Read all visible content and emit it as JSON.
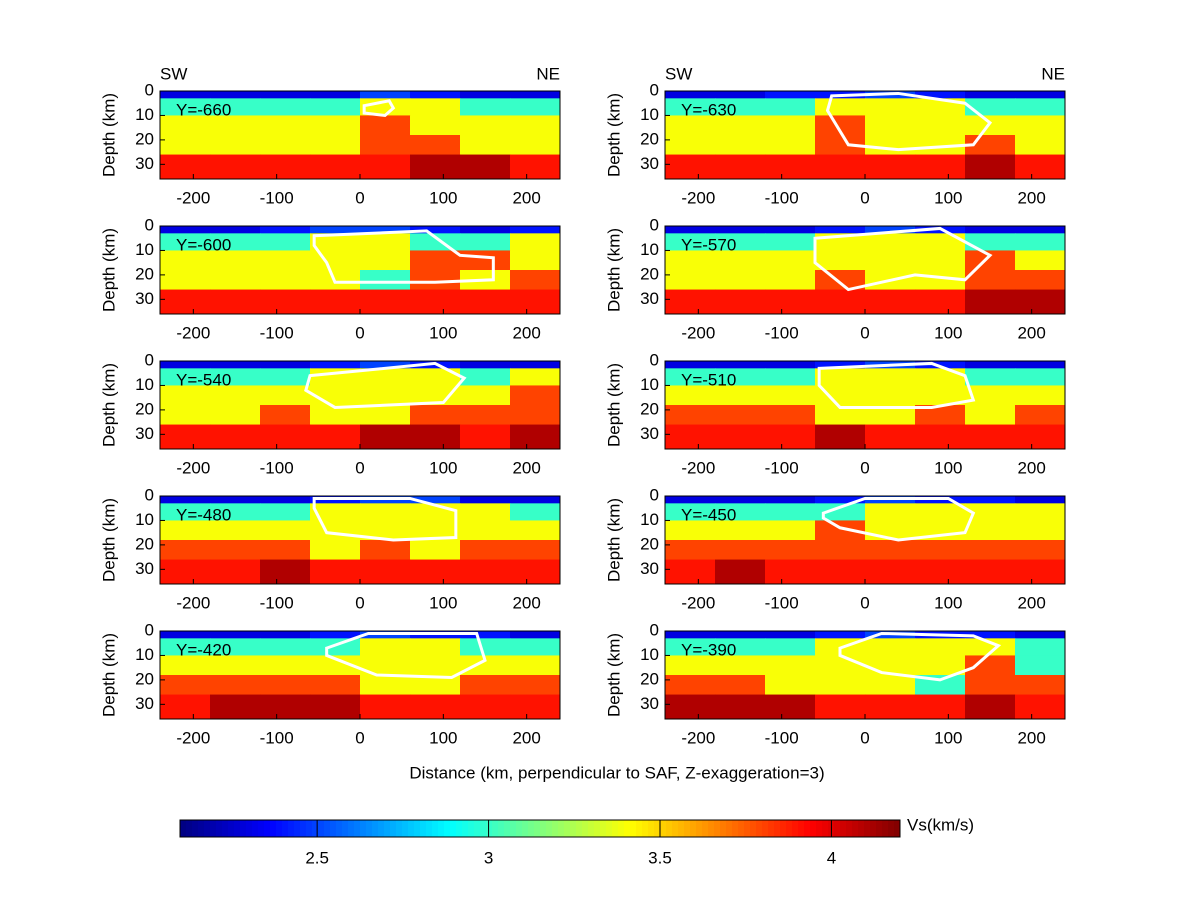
{
  "chart_data": [
    {
      "type": "contour",
      "title": "Y=-660",
      "left_label": "SW",
      "right_label": "NE",
      "ylabel": "Depth (km)",
      "x": [
        -240,
        -180,
        -120,
        -60,
        0,
        60,
        120,
        180,
        240
      ],
      "depth": [
        0,
        3,
        10,
        18,
        26,
        36
      ],
      "z": [
        [
          2.3,
          2.3,
          2.3,
          2.3,
          2.5,
          2.4,
          2.3,
          2.3
        ],
        [
          3.0,
          3.0,
          3.0,
          3.0,
          3.4,
          3.4,
          3.0,
          3.0
        ],
        [
          3.4,
          3.4,
          3.4,
          3.4,
          3.8,
          3.4,
          3.4,
          3.4
        ],
        [
          3.4,
          3.4,
          3.4,
          3.4,
          3.8,
          3.8,
          3.4,
          3.4
        ],
        [
          3.9,
          3.9,
          3.9,
          3.9,
          3.9,
          4.1,
          4.1,
          3.9
        ]
      ],
      "outline": {
        "x": [
          5,
          35,
          40,
          30,
          5
        ],
        "depth": [
          6,
          4,
          7,
          10,
          9
        ]
      },
      "xlim": [
        -240,
        240
      ],
      "ylim": [
        0,
        36
      ],
      "xticks": [
        -200,
        -100,
        0,
        100,
        200
      ],
      "yticks": [
        0,
        10,
        20,
        30
      ]
    },
    {
      "type": "contour",
      "title": "Y=-630",
      "left_label": "SW",
      "right_label": "NE",
      "ylabel": "Depth (km)",
      "x": [
        -240,
        -180,
        -120,
        -60,
        0,
        60,
        120,
        180,
        240
      ],
      "depth": [
        0,
        3,
        10,
        18,
        26,
        36
      ],
      "z": [
        [
          2.3,
          2.3,
          2.4,
          2.4,
          2.5,
          2.4,
          2.3,
          2.3
        ],
        [
          3.0,
          3.0,
          3.0,
          3.4,
          3.4,
          3.4,
          3.0,
          3.0
        ],
        [
          3.4,
          3.4,
          3.4,
          3.8,
          3.4,
          3.4,
          3.4,
          3.4
        ],
        [
          3.4,
          3.4,
          3.4,
          3.8,
          3.4,
          3.4,
          3.8,
          3.4
        ],
        [
          3.9,
          3.9,
          3.9,
          3.9,
          3.9,
          3.9,
          4.1,
          3.9
        ]
      ],
      "outline": {
        "x": [
          -40,
          40,
          120,
          150,
          130,
          40,
          -20,
          -45
        ],
        "depth": [
          2,
          1,
          5,
          13,
          22,
          24,
          22,
          8
        ]
      },
      "xlim": [
        -240,
        240
      ],
      "ylim": [
        0,
        36
      ],
      "xticks": [
        -200,
        -100,
        0,
        100,
        200
      ],
      "yticks": [
        0,
        10,
        20,
        30
      ]
    },
    {
      "type": "contour",
      "title": "Y=-600",
      "ylabel": "Depth (km)",
      "x": [
        -240,
        -180,
        -120,
        -60,
        0,
        60,
        120,
        180,
        240
      ],
      "depth": [
        0,
        3,
        10,
        18,
        26,
        36
      ],
      "z": [
        [
          2.3,
          2.3,
          2.4,
          2.5,
          2.5,
          2.4,
          2.3,
          2.4
        ],
        [
          3.0,
          3.0,
          3.0,
          3.4,
          3.4,
          3.0,
          3.0,
          3.4
        ],
        [
          3.4,
          3.4,
          3.4,
          3.4,
          3.4,
          3.8,
          3.8,
          3.4
        ],
        [
          3.4,
          3.4,
          3.4,
          3.4,
          3.0,
          3.8,
          3.4,
          3.8
        ],
        [
          3.9,
          3.9,
          3.9,
          3.9,
          3.9,
          3.9,
          3.9,
          3.9
        ]
      ],
      "outline": {
        "x": [
          -55,
          80,
          120,
          160,
          160,
          90,
          -30,
          -40,
          -55
        ],
        "depth": [
          4,
          2,
          12,
          13,
          22,
          23,
          23,
          15,
          8
        ]
      },
      "xlim": [
        -240,
        240
      ],
      "ylim": [
        0,
        36
      ],
      "xticks": [
        -200,
        -100,
        0,
        100,
        200
      ],
      "yticks": [
        0,
        10,
        20,
        30
      ]
    },
    {
      "type": "contour",
      "title": "Y=-570",
      "ylabel": "Depth (km)",
      "x": [
        -240,
        -180,
        -120,
        -60,
        0,
        60,
        120,
        180,
        240
      ],
      "depth": [
        0,
        3,
        10,
        18,
        26,
        36
      ],
      "z": [
        [
          2.3,
          2.3,
          2.3,
          2.4,
          2.5,
          2.4,
          2.3,
          2.3
        ],
        [
          3.0,
          3.0,
          3.0,
          3.4,
          3.4,
          3.4,
          3.0,
          3.0
        ],
        [
          3.4,
          3.4,
          3.4,
          3.4,
          3.4,
          3.4,
          3.8,
          3.4
        ],
        [
          3.4,
          3.4,
          3.4,
          3.8,
          3.4,
          3.4,
          3.8,
          3.8
        ],
        [
          3.9,
          3.9,
          3.9,
          3.9,
          3.9,
          3.9,
          4.1,
          4.1
        ]
      ],
      "outline": {
        "x": [
          -60,
          90,
          150,
          120,
          60,
          -20,
          -60
        ],
        "depth": [
          5,
          1,
          12,
          22,
          20,
          26,
          15
        ]
      },
      "xlim": [
        -240,
        240
      ],
      "ylim": [
        0,
        36
      ],
      "xticks": [
        -200,
        -100,
        0,
        100,
        200
      ],
      "yticks": [
        0,
        10,
        20,
        30
      ]
    },
    {
      "type": "contour",
      "title": "Y=-540",
      "ylabel": "Depth (km)",
      "x": [
        -240,
        -180,
        -120,
        -60,
        0,
        60,
        120,
        180,
        240
      ],
      "depth": [
        0,
        3,
        10,
        18,
        26,
        36
      ],
      "z": [
        [
          2.3,
          2.3,
          2.3,
          2.4,
          2.5,
          2.4,
          2.3,
          2.3
        ],
        [
          3.0,
          3.0,
          3.0,
          3.4,
          3.4,
          3.4,
          3.0,
          3.4
        ],
        [
          3.4,
          3.4,
          3.4,
          3.4,
          3.4,
          3.4,
          3.4,
          3.8
        ],
        [
          3.4,
          3.4,
          3.8,
          3.4,
          3.4,
          3.8,
          3.8,
          3.8
        ],
        [
          3.9,
          3.9,
          3.9,
          3.9,
          4.1,
          4.1,
          3.9,
          4.1
        ]
      ],
      "outline": {
        "x": [
          -60,
          90,
          125,
          100,
          -30,
          -65
        ],
        "depth": [
          6,
          1,
          7,
          17,
          19,
          12
        ]
      },
      "xlim": [
        -240,
        240
      ],
      "ylim": [
        0,
        36
      ],
      "xticks": [
        -200,
        -100,
        0,
        100,
        200
      ],
      "yticks": [
        0,
        10,
        20,
        30
      ]
    },
    {
      "type": "contour",
      "title": "Y=-510",
      "ylabel": "Depth (km)",
      "x": [
        -240,
        -180,
        -120,
        -60,
        0,
        60,
        120,
        180,
        240
      ],
      "depth": [
        0,
        3,
        10,
        18,
        26,
        36
      ],
      "z": [
        [
          2.3,
          2.3,
          2.3,
          2.4,
          2.5,
          2.4,
          2.3,
          2.3
        ],
        [
          3.0,
          3.0,
          3.0,
          3.4,
          3.4,
          3.4,
          3.0,
          3.0
        ],
        [
          3.4,
          3.4,
          3.4,
          3.4,
          3.4,
          3.4,
          3.4,
          3.4
        ],
        [
          3.8,
          3.8,
          3.8,
          3.4,
          3.4,
          3.8,
          3.4,
          3.8
        ],
        [
          3.9,
          3.9,
          3.9,
          4.1,
          3.9,
          3.9,
          3.9,
          3.9
        ]
      ],
      "outline": {
        "x": [
          -55,
          80,
          120,
          130,
          80,
          -30,
          -55
        ],
        "depth": [
          3,
          1,
          6,
          16,
          19,
          19,
          10
        ]
      },
      "xlim": [
        -240,
        240
      ],
      "ylim": [
        0,
        36
      ],
      "xticks": [
        -200,
        -100,
        0,
        100,
        200
      ],
      "yticks": [
        0,
        10,
        20,
        30
      ]
    },
    {
      "type": "contour",
      "title": "Y=-480",
      "ylabel": "Depth (km)",
      "x": [
        -240,
        -180,
        -120,
        -60,
        0,
        60,
        120,
        180,
        240
      ],
      "depth": [
        0,
        3,
        10,
        18,
        26,
        36
      ],
      "z": [
        [
          2.3,
          2.3,
          2.3,
          2.4,
          2.5,
          2.5,
          2.3,
          2.3
        ],
        [
          3.0,
          3.0,
          3.0,
          3.4,
          3.4,
          3.4,
          3.4,
          3.0
        ],
        [
          3.4,
          3.4,
          3.4,
          3.4,
          3.4,
          3.4,
          3.4,
          3.4
        ],
        [
          3.8,
          3.8,
          3.8,
          3.4,
          3.8,
          3.4,
          3.8,
          3.8
        ],
        [
          3.9,
          3.9,
          4.1,
          3.9,
          3.9,
          3.9,
          3.9,
          3.9
        ]
      ],
      "outline": {
        "x": [
          -55,
          60,
          115,
          115,
          40,
          -40,
          -55
        ],
        "depth": [
          1,
          1,
          6,
          17,
          18,
          15,
          5
        ]
      },
      "xlim": [
        -240,
        240
      ],
      "ylim": [
        0,
        36
      ],
      "xticks": [
        -200,
        -100,
        0,
        100,
        200
      ],
      "yticks": [
        0,
        10,
        20,
        30
      ]
    },
    {
      "type": "contour",
      "title": "Y=-450",
      "ylabel": "Depth (km)",
      "x": [
        -240,
        -180,
        -120,
        -60,
        0,
        60,
        120,
        180,
        240
      ],
      "depth": [
        0,
        3,
        10,
        18,
        26,
        36
      ],
      "z": [
        [
          2.3,
          2.3,
          2.3,
          2.4,
          2.5,
          2.4,
          2.4,
          2.3
        ],
        [
          3.0,
          3.0,
          3.0,
          3.0,
          3.4,
          3.4,
          3.4,
          3.4
        ],
        [
          3.4,
          3.4,
          3.4,
          3.8,
          3.4,
          3.4,
          3.4,
          3.4
        ],
        [
          3.8,
          3.8,
          3.8,
          3.8,
          3.8,
          3.8,
          3.8,
          3.8
        ],
        [
          3.9,
          4.1,
          3.9,
          3.9,
          3.9,
          3.9,
          3.9,
          3.9
        ]
      ],
      "outline": {
        "x": [
          -50,
          0,
          100,
          130,
          120,
          40,
          -30,
          -50
        ],
        "depth": [
          7,
          1,
          1,
          7,
          15,
          18,
          13,
          9
        ]
      },
      "xlim": [
        -240,
        240
      ],
      "ylim": [
        0,
        36
      ],
      "xticks": [
        -200,
        -100,
        0,
        100,
        200
      ],
      "yticks": [
        0,
        10,
        20,
        30
      ]
    },
    {
      "type": "contour",
      "title": "Y=-420",
      "ylabel": "Depth (km)",
      "x": [
        -240,
        -180,
        -120,
        -60,
        0,
        60,
        120,
        180,
        240
      ],
      "depth": [
        0,
        3,
        10,
        18,
        26,
        36
      ],
      "z": [
        [
          2.3,
          2.3,
          2.3,
          2.4,
          2.5,
          2.4,
          2.4,
          2.3
        ],
        [
          3.0,
          3.0,
          3.0,
          3.0,
          3.4,
          3.4,
          3.0,
          3.0
        ],
        [
          3.4,
          3.4,
          3.4,
          3.4,
          3.4,
          3.4,
          3.4,
          3.4
        ],
        [
          3.8,
          3.8,
          3.8,
          3.8,
          3.4,
          3.4,
          3.8,
          3.8
        ],
        [
          3.9,
          4.1,
          4.1,
          4.1,
          3.9,
          3.9,
          3.9,
          3.9
        ]
      ],
      "outline": {
        "x": [
          -40,
          10,
          140,
          150,
          110,
          20,
          -40
        ],
        "depth": [
          7,
          1,
          1,
          12,
          19,
          18,
          10
        ]
      },
      "xlim": [
        -240,
        240
      ],
      "ylim": [
        0,
        36
      ],
      "xticks": [
        -200,
        -100,
        0,
        100,
        200
      ],
      "yticks": [
        0,
        10,
        20,
        30
      ]
    },
    {
      "type": "contour",
      "title": "Y=-390",
      "ylabel": "Depth (km)",
      "x": [
        -240,
        -180,
        -120,
        -60,
        0,
        60,
        120,
        180,
        240
      ],
      "depth": [
        0,
        3,
        10,
        18,
        26,
        36
      ],
      "z": [
        [
          2.3,
          2.3,
          2.3,
          2.4,
          2.5,
          2.4,
          2.4,
          2.3
        ],
        [
          3.0,
          3.0,
          3.0,
          3.4,
          3.4,
          3.4,
          3.4,
          3.0
        ],
        [
          3.4,
          3.4,
          3.4,
          3.4,
          3.4,
          3.4,
          3.8,
          3.0
        ],
        [
          3.8,
          3.8,
          3.4,
          3.4,
          3.4,
          3.0,
          3.8,
          3.8
        ],
        [
          4.1,
          4.1,
          4.1,
          3.9,
          3.9,
          3.9,
          4.1,
          3.9
        ]
      ],
      "outline": {
        "x": [
          -30,
          20,
          130,
          160,
          130,
          90,
          20,
          -30
        ],
        "depth": [
          7,
          1,
          2,
          6,
          15,
          20,
          17,
          10
        ]
      },
      "xlim": [
        -240,
        240
      ],
      "ylim": [
        0,
        36
      ],
      "xticks": [
        -200,
        -100,
        0,
        100,
        200
      ],
      "yticks": [
        0,
        10,
        20,
        30
      ]
    }
  ],
  "xlabel": "Distance (km, perpendicular to SAF, Z-exaggeration=3)",
  "colorbar": {
    "label": "Vs(km/s)",
    "lim": [
      2.1,
      4.2
    ],
    "ticks": [
      2.5,
      3,
      3.5,
      4
    ]
  }
}
